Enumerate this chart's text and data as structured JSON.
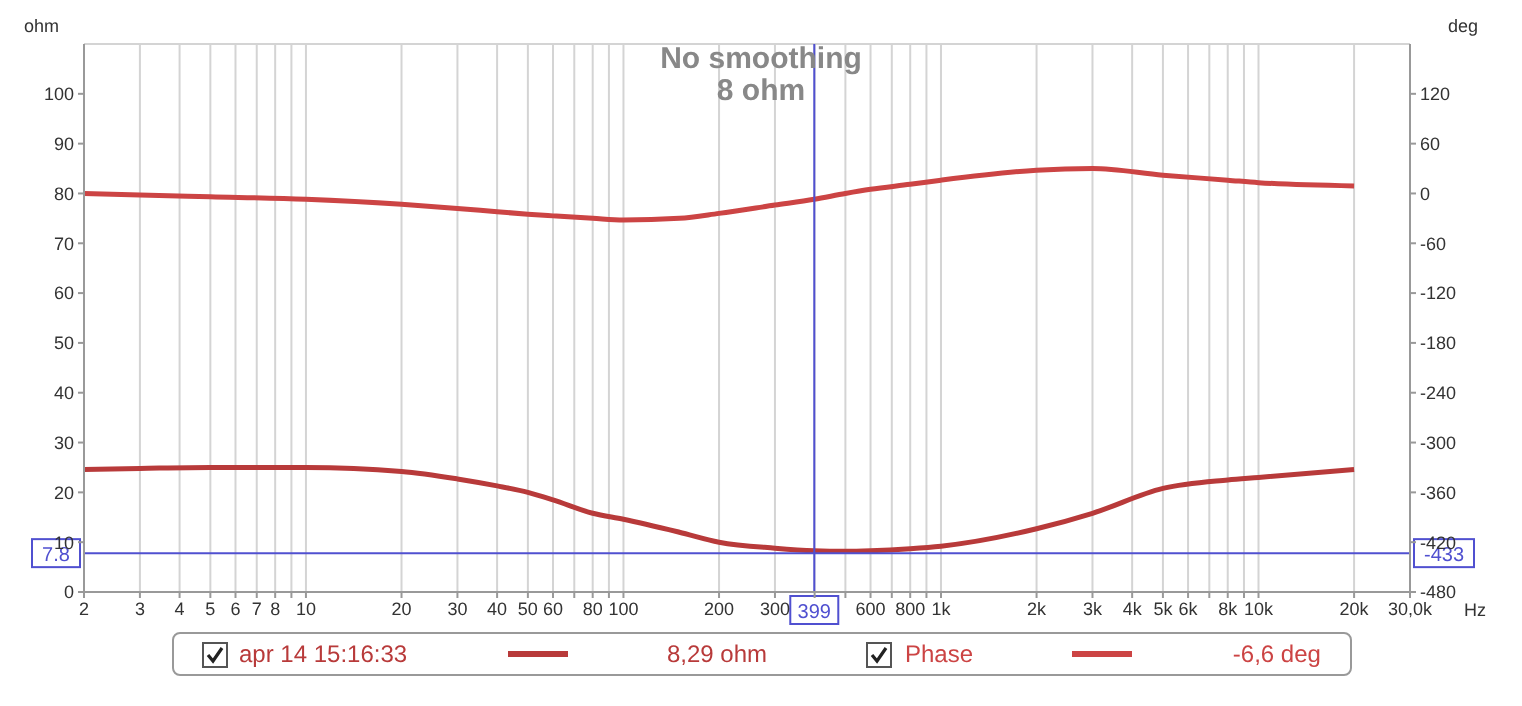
{
  "chart_data": {
    "type": "line",
    "title": "No smoothing",
    "subtitle": "8 ohm",
    "ylabel": "ohm",
    "y2label": "deg",
    "xlabel": "Hz",
    "x": [
      2,
      3,
      5,
      10,
      20,
      30,
      40,
      50,
      60,
      80,
      100,
      150,
      200,
      300,
      399,
      500,
      600,
      800,
      1000,
      2000,
      3000,
      5000,
      8000,
      10000,
      20000
    ],
    "series": [
      {
        "name": "apr 14 15:16:33",
        "color": "#b83a3a",
        "values": [
          24.6,
          24.8,
          25,
          25,
          24.2,
          22.7,
          21.3,
          20,
          18.5,
          15.8,
          14.6,
          12,
          10,
          8.8,
          8.3,
          8.2,
          8.3,
          8.7,
          9.2,
          12.7,
          15.8,
          20.8,
          22.5,
          23,
          24.6
        ]
      },
      {
        "name": "Phase",
        "color": "#cc4444",
        "axis": "y2",
        "values": [
          0,
          -2,
          -4,
          -7,
          -13,
          -18,
          -22,
          -25,
          -27,
          -30,
          -32,
          -30,
          -24,
          -14,
          -7,
          0,
          5,
          11,
          16,
          28,
          30,
          22,
          16,
          13,
          9
        ]
      }
    ],
    "xlim": [
      2,
      30000
    ],
    "log": "x",
    "xticks": [
      2,
      3,
      4,
      5,
      6,
      7,
      8,
      {
        "value": 9,
        "label": null
      },
      10,
      20,
      30,
      40,
      50,
      60,
      {
        "value": 70,
        "label": null
      },
      80,
      {
        "value": 90,
        "label": null
      },
      100,
      200,
      300,
      {
        "value": 400,
        "label": null
      },
      {
        "value": 500,
        "label": null
      },
      600,
      {
        "value": 700,
        "label": null
      },
      800,
      {
        "value": 900,
        "label": null
      },
      {
        "value": 1000,
        "label": "1k"
      },
      {
        "value": 2000,
        "label": "2k"
      },
      {
        "value": 3000,
        "label": "3k"
      },
      {
        "value": 4000,
        "label": "4k"
      },
      {
        "value": 5000,
        "label": "5k"
      },
      {
        "value": 6000,
        "label": "6k"
      },
      {
        "value": 7000,
        "label": null
      },
      {
        "value": 8000,
        "label": "8k"
      },
      {
        "value": 9000,
        "label": null
      },
      {
        "value": 10000,
        "label": "10k"
      },
      {
        "value": 20000,
        "label": "20k"
      },
      {
        "value": 30000,
        "label": "30,0k"
      }
    ],
    "ylim": [
      0,
      110
    ],
    "yticks": [
      0,
      10,
      20,
      30,
      40,
      50,
      60,
      70,
      80,
      90,
      100
    ],
    "y2lim": [
      -480,
      180
    ],
    "y2ticks": [
      -480,
      -420,
      -360,
      -300,
      -240,
      -180,
      -120,
      -60,
      0,
      60,
      120
    ],
    "ref_lines": [
      {
        "axis": "x",
        "value": 399,
        "label": "399",
        "color": "#5050d0"
      },
      {
        "axis": "y",
        "value": 7.8,
        "label": "7.8",
        "color": "#5050d0"
      }
    ],
    "annotations": [
      "8,29 ohm",
      "-6,6 deg",
      "-433"
    ],
    "grid": true,
    "legend": "bottom",
    "marker": "none",
    "line_style": "solid"
  }
}
